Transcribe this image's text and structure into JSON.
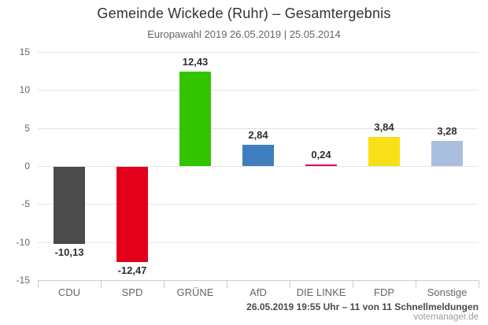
{
  "header": {
    "title": "Gemeinde Wickede (Ruhr) – Gesamtergebnis",
    "subtitle": "Europawahl 2019 26.05.2019 | 25.05.2014"
  },
  "footer": {
    "status": "26.05.2019 19:55 Uhr – 11 von 11 Schnellmeldungen",
    "source": "votemanager.de"
  },
  "chart_data": {
    "type": "bar",
    "title": "Gemeinde Wickede (Ruhr) – Gesamtergebnis",
    "subtitle": "Europawahl 2019 26.05.2019 | 25.05.2014",
    "categories": [
      "CDU",
      "SPD",
      "GRÜNE",
      "AfD",
      "DIE LINKE",
      "FDP",
      "Sonstige"
    ],
    "values": [
      -10.13,
      -12.47,
      12.43,
      2.84,
      0.24,
      3.84,
      3.28
    ],
    "value_labels": [
      "-10,13",
      "-12,47",
      "12,43",
      "2,84",
      "0,24",
      "3,84",
      "3,28"
    ],
    "colors": [
      "#4b4b4b",
      "#e2001a",
      "#33c400",
      "#3e7dbe",
      "#dd0066",
      "#f7e017",
      "#aabfdf"
    ],
    "ylim": [
      -15,
      15
    ],
    "yticks": [
      15,
      10,
      5,
      0,
      -5,
      -10,
      -15
    ],
    "ytick_labels": [
      "15",
      "10",
      "5",
      "0",
      "-5",
      "-10",
      "-15"
    ],
    "xlabel": "",
    "ylabel": "",
    "grid": true,
    "legend": false
  },
  "style_colors": {
    "gridline": "#e6e6e6",
    "axis": "#cccccc",
    "title_text": "#333333",
    "muted_text": "#666666"
  }
}
